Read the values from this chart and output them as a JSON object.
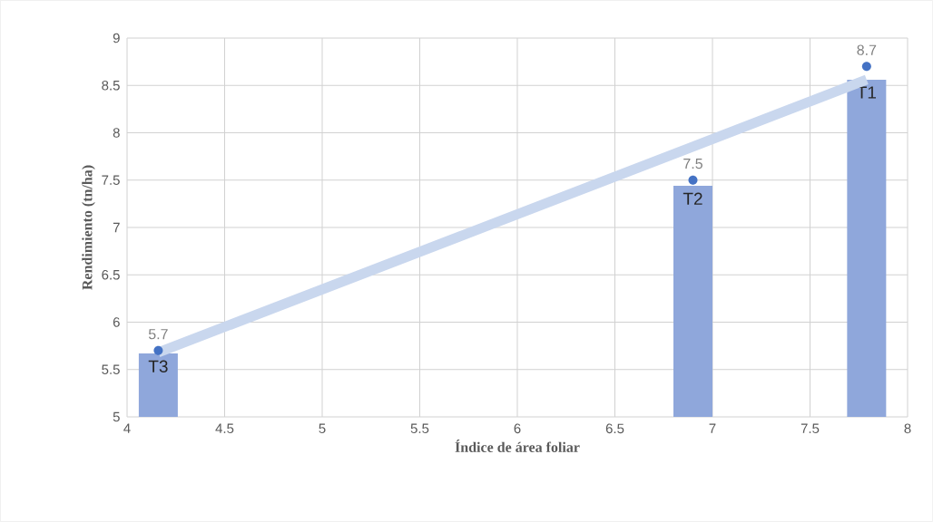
{
  "chart_data": {
    "type": "scatter",
    "xlabel": "Índice de área foliar",
    "ylabel": "Rendimiento (tn/ha)",
    "xlim": [
      4,
      8
    ],
    "ylim": [
      5,
      9
    ],
    "xticks": [
      4,
      4.5,
      5,
      5.5,
      6,
      6.5,
      7,
      7.5,
      8
    ],
    "yticks": [
      5,
      5.5,
      6,
      6.5,
      7,
      7.5,
      8,
      8.5,
      9
    ],
    "grid": true,
    "marker": "circle",
    "series": [
      {
        "type": "bar",
        "color": "#8fa7db",
        "x": [
          4.16,
          6.9,
          7.79
        ],
        "values": [
          5.67,
          7.44,
          8.56
        ],
        "value_labels": [
          "T3",
          "T2",
          "T1"
        ]
      },
      {
        "type": "line",
        "color": "#c9d7ee",
        "marker": "none",
        "x": [
          4.16,
          7.79
        ],
        "values": [
          5.68,
          8.56
        ]
      },
      {
        "color": "#4472c4",
        "x": [
          4.16,
          6.9,
          7.79
        ],
        "values": [
          5.7,
          7.5,
          8.7
        ],
        "value_labels": [
          "5.7",
          "7.5",
          "8.7"
        ]
      }
    ]
  }
}
